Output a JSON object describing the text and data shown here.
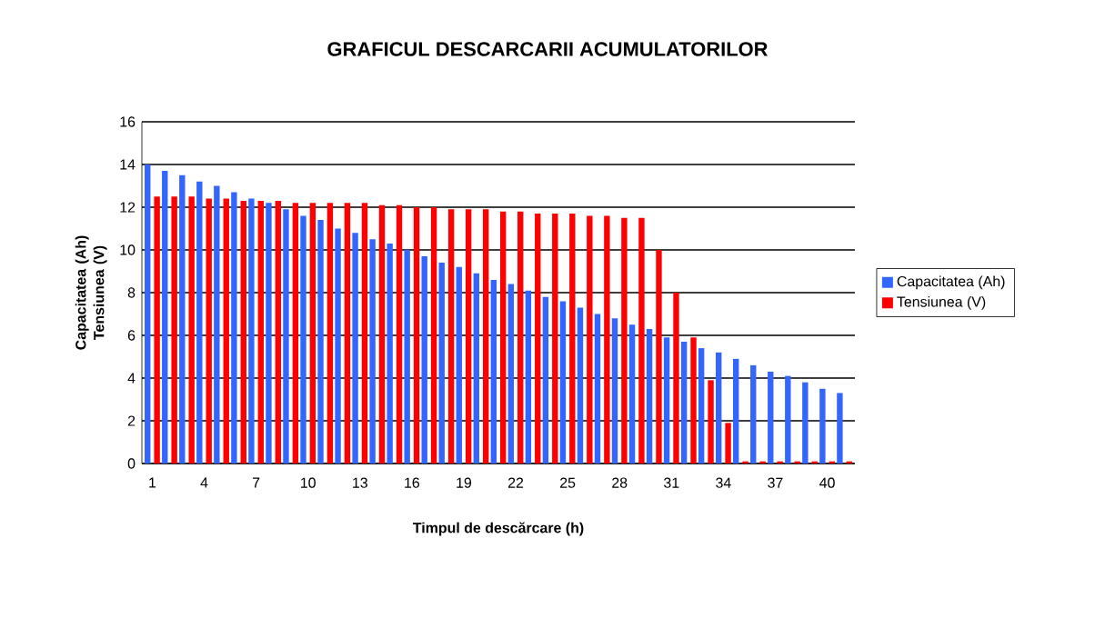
{
  "chart_data": {
    "type": "bar",
    "title": "GRAFICUL DESCARCARII ACUMULATORILOR",
    "xlabel": "Timpul de descărcare (h)",
    "ylabel": "Capacitatea (Ah) Tensiunea (V)",
    "categories": [
      "1",
      null,
      null,
      "4",
      null,
      null,
      "7",
      null,
      null,
      "10",
      null,
      null,
      "13",
      null,
      null,
      "16",
      null,
      null,
      "19",
      null,
      null,
      "22",
      null,
      null,
      "25",
      null,
      null,
      "28",
      null,
      null,
      "31",
      null,
      null,
      "34",
      null,
      null,
      "37",
      null,
      null,
      "40",
      null
    ],
    "series": [
      {
        "name": "Capacitatea (Ah)",
        "color": "#3366ff",
        "values": [
          14.0,
          13.7,
          13.5,
          13.2,
          13.0,
          12.7,
          12.4,
          12.2,
          11.9,
          11.6,
          11.4,
          11.0,
          10.8,
          10.5,
          10.3,
          10.0,
          9.7,
          9.4,
          9.2,
          8.9,
          8.6,
          8.4,
          8.1,
          7.8,
          7.6,
          7.3,
          7.0,
          6.8,
          6.5,
          6.3,
          5.9,
          5.7,
          5.4,
          5.2,
          4.9,
          4.6,
          4.3,
          4.1,
          3.8,
          3.5,
          3.3
        ]
      },
      {
        "name": "Tensiunea (V)",
        "color": "#ff0000",
        "values": [
          12.5,
          12.5,
          12.5,
          12.4,
          12.4,
          12.3,
          12.3,
          12.3,
          12.2,
          12.2,
          12.2,
          12.2,
          12.2,
          12.1,
          12.1,
          12.0,
          12.0,
          11.9,
          11.9,
          11.9,
          11.8,
          11.8,
          11.7,
          11.7,
          11.7,
          11.6,
          11.6,
          11.5,
          11.5,
          10.0,
          8.0,
          5.9,
          3.9,
          1.9,
          0.1,
          0.1,
          0.1,
          0.1,
          0.1,
          0.1,
          0.1
        ]
      }
    ],
    "ylim": [
      0,
      16
    ],
    "yticks": [
      0,
      2,
      4,
      6,
      8,
      10,
      12,
      14,
      16
    ],
    "grid": "y",
    "legend": "right"
  }
}
